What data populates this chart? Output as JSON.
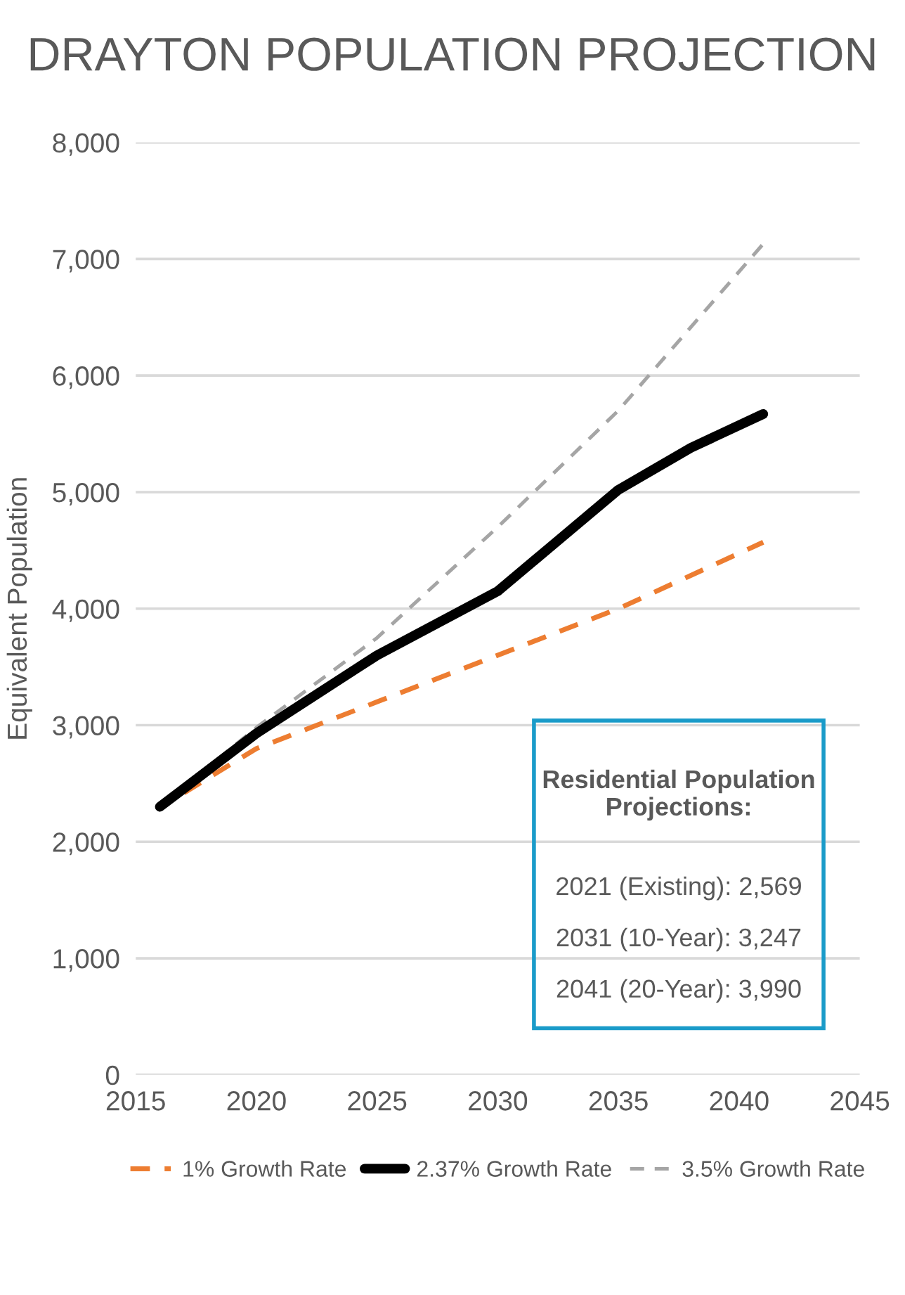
{
  "chart_data": {
    "type": "line",
    "title": "DRAYTON POPULATION PROJECTION",
    "ylabel": "Equivalent Population",
    "xlim": [
      2015,
      2045
    ],
    "xticks": [
      2015,
      2020,
      2025,
      2030,
      2035,
      2040,
      2045
    ],
    "ylim": [
      0,
      8000
    ],
    "yticks": [
      0,
      {
        "value": 1000,
        "label": "1,000"
      },
      {
        "value": 2000,
        "label": "2,000"
      },
      {
        "value": 3000,
        "label": "3,000"
      },
      {
        "value": 4000,
        "label": "4,000"
      },
      {
        "value": 5000,
        "label": "5,000"
      },
      {
        "value": 6000,
        "label": "6,000"
      },
      {
        "value": 7000,
        "label": "7,000"
      },
      {
        "value": 8000,
        "label": "8,000"
      }
    ],
    "grid": "y",
    "legend": "bottom",
    "annotations": [
      "Residential Population\nProjections:",
      "2021 (Existing): 2,569",
      "2031 (10-Year): 3,247",
      "2041 (20-Year): 3,990"
    ],
    "series": [
      {
        "name": "1% Growth Rate",
        "color": "#ed7d31",
        "line_style": "dashed",
        "x": [
          2017,
          2020,
          2025,
          2030,
          2035,
          2041
        ],
        "values": [
          2420,
          2800,
          3200,
          3600,
          4000,
          4570
        ]
      },
      {
        "name": "2.37% Growth Rate",
        "color": "#000000",
        "line_style": "solid",
        "x": [
          2016,
          2020,
          2025,
          2030,
          2035,
          2038,
          2041
        ],
        "values": [
          2300,
          2930,
          3600,
          4150,
          5020,
          5380,
          5670
        ]
      },
      {
        "name": "3.5% Growth Rate",
        "color": "#a5a5a5",
        "line_style": "dashed",
        "x": [
          2016,
          2020,
          2025,
          2030,
          2035,
          2041
        ],
        "values": [
          2300,
          2980,
          3750,
          4700,
          5700,
          7130
        ]
      }
    ]
  }
}
